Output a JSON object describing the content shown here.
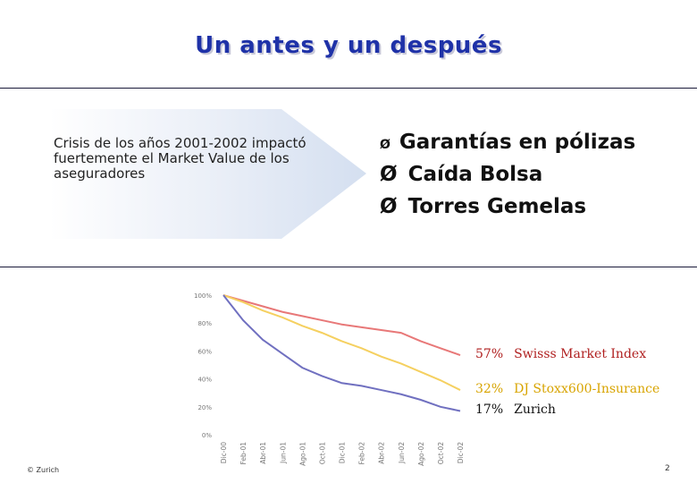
{
  "slide": {
    "title": "Un antes y un después",
    "arrow_text": "Crisis de los años 2001-2002 impactó fuertemente el Market Value de los aseguradores",
    "bullets": [
      "Garantías en pólizas",
      "Caída Bolsa",
      "Torres Gemelas"
    ],
    "bullet_mark": "Ø",
    "footer_left": "© Zurich",
    "page_number": "2"
  },
  "chart_data": {
    "type": "line",
    "x": [
      "Dic-00",
      "Feb-01",
      "Abr-01",
      "Jun-01",
      "Ago-01",
      "Oct-01",
      "Dic-01",
      "Feb-02",
      "Abr-02",
      "Jun-02",
      "Ago-02",
      "Oct-02",
      "Dic-02"
    ],
    "y_ticks": [
      "0%",
      "20%",
      "40%",
      "60%",
      "80%",
      "100%"
    ],
    "ylim": [
      0,
      100
    ],
    "series": [
      {
        "name": "Swisss Market Index",
        "label_pct": "57%",
        "color": "#e87878",
        "text_color": "#b02020",
        "values": [
          100,
          96,
          92,
          88,
          85,
          82,
          79,
          77,
          75,
          73,
          67,
          62,
          57
        ]
      },
      {
        "name": "DJ Stoxx600-Insurance",
        "label_pct": "32%",
        "color": "#f5d060",
        "text_color": "#d8a400",
        "values": [
          100,
          95,
          89,
          84,
          78,
          73,
          67,
          62,
          56,
          51,
          45,
          39,
          32
        ]
      },
      {
        "name": "Zurich",
        "label_pct": "17%",
        "color": "#7070c0",
        "text_color": "#111111",
        "values": [
          100,
          82,
          68,
          58,
          48,
          42,
          37,
          35,
          32,
          29,
          25,
          20,
          17
        ]
      }
    ]
  }
}
